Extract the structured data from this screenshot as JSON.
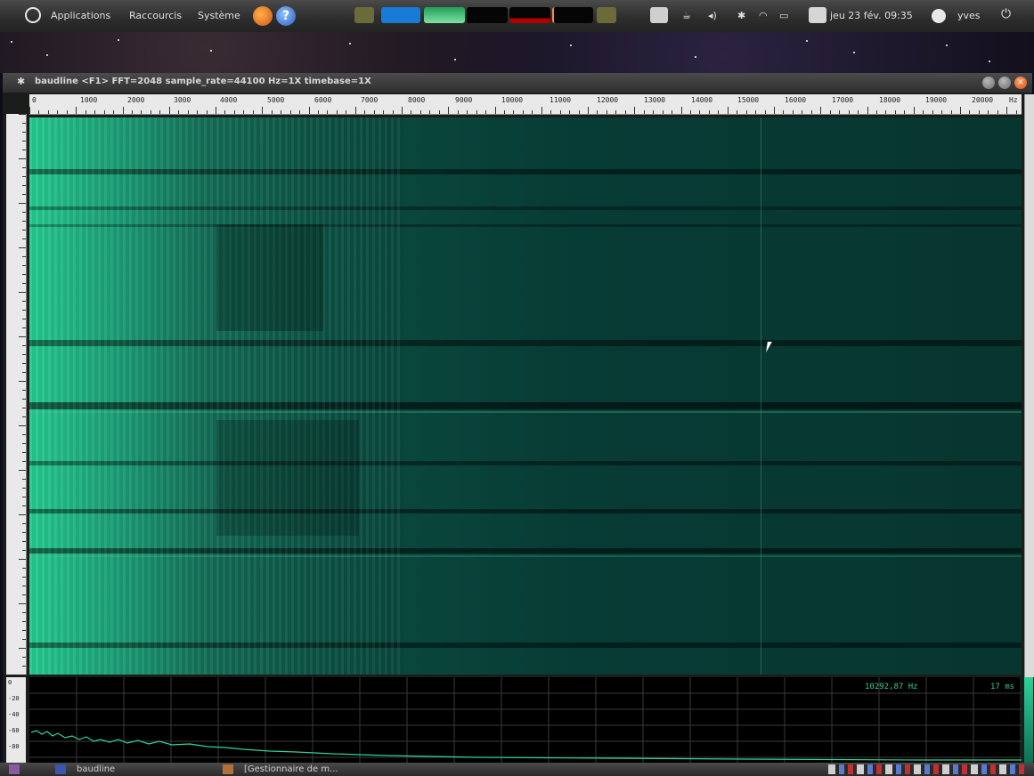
{
  "top_panel": {
    "menus": [
      "Applications",
      "Raccourcis",
      "Système"
    ],
    "clock": "jeu 23 fév. 09:35",
    "user": "yves"
  },
  "window": {
    "title": "baudline  <F1> FFT=2048 sample_rate=44100 Hz=1X timebase=1X",
    "ruler_labels": [
      "0",
      "1000",
      "2000",
      "3000",
      "4000",
      "5000",
      "6000",
      "7000",
      "8000",
      "9000",
      "10000",
      "11000",
      "12000",
      "13000",
      "14000",
      "15000",
      "16000",
      "17000",
      "18000",
      "19000",
      "20000",
      "Hz"
    ],
    "spectrum_scale": [
      "0",
      "-20",
      "-40",
      "-60",
      "-80"
    ],
    "readout_freq": "10292,87 Hz",
    "readout_time": "17 ms",
    "accent": "#2fd49c"
  },
  "taskbar": {
    "items": [
      "baudline",
      "[Gestionnaire de m..."
    ]
  }
}
